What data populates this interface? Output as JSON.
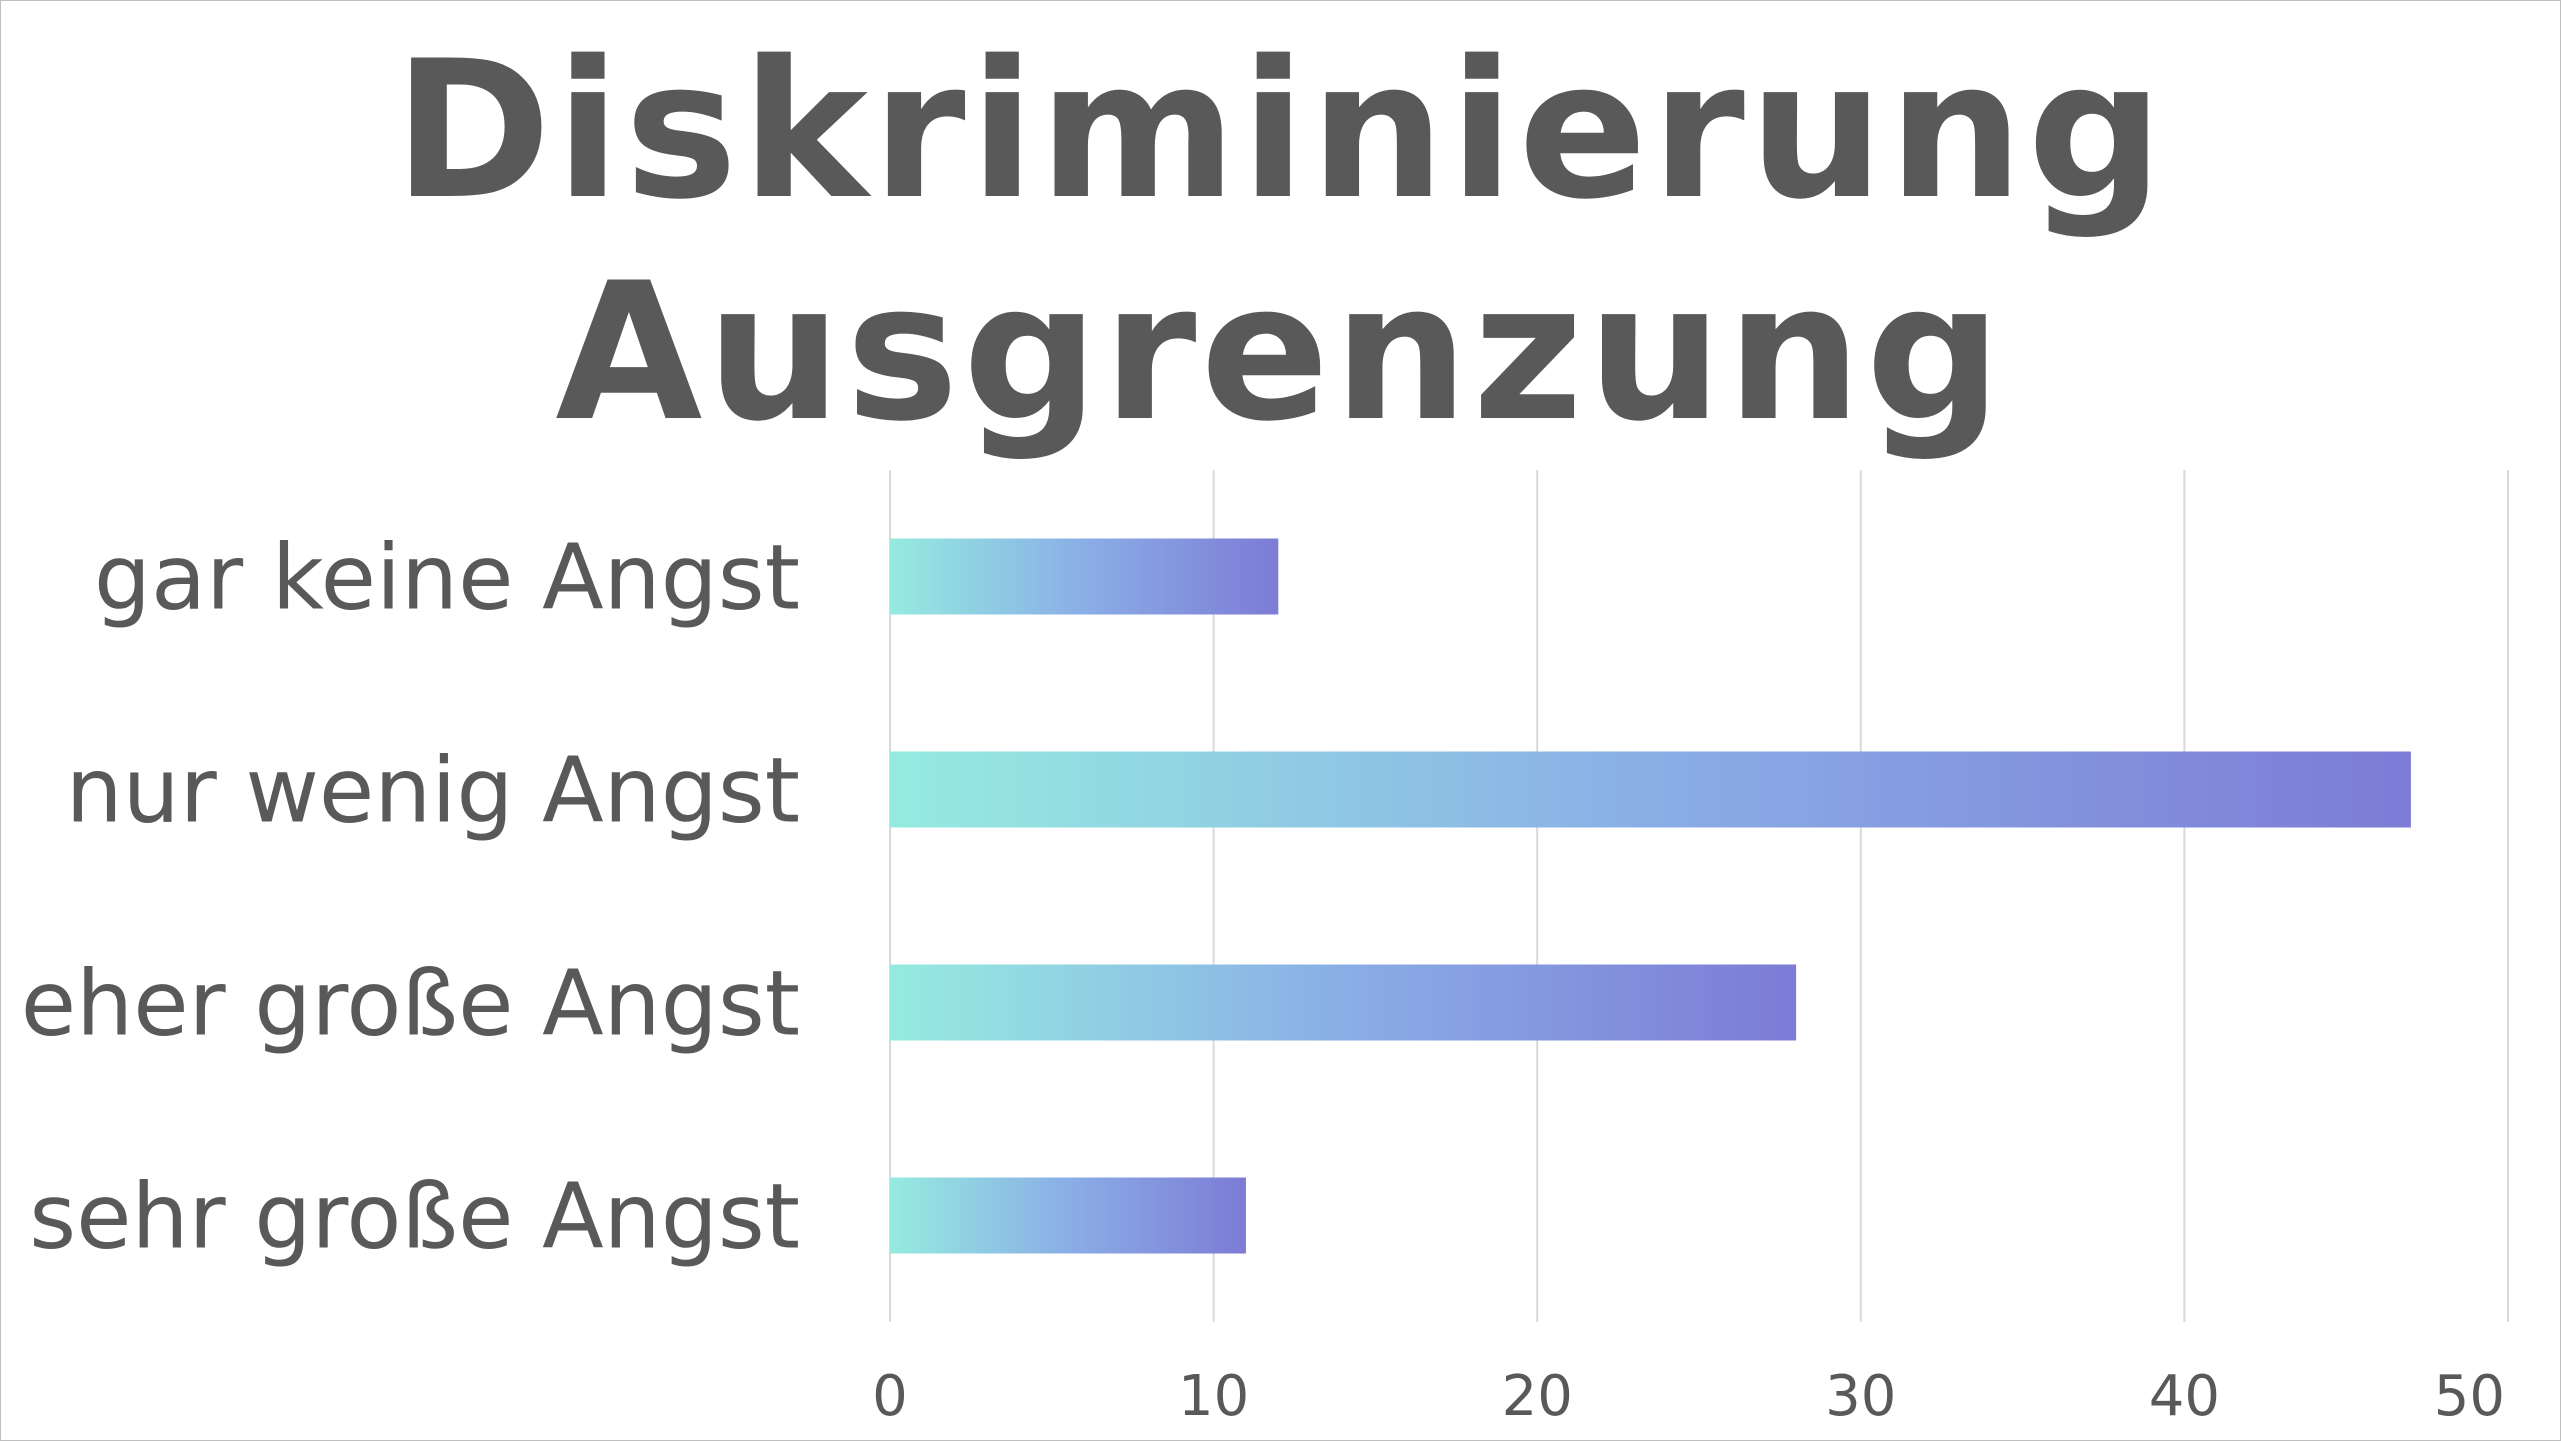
{
  "chart_data": {
    "type": "bar",
    "orientation": "horizontal",
    "title": [
      "Diskriminierung",
      "Ausgrenzung"
    ],
    "categories": [
      "gar keine Angst",
      "nur wenig Angst",
      "eher große Angst",
      "sehr große Angst"
    ],
    "values": [
      12,
      47,
      28,
      11
    ],
    "xlim": [
      0,
      50
    ],
    "xticks": [
      0,
      10,
      20,
      30,
      40,
      50
    ],
    "xlabel": "",
    "ylabel": "",
    "grid": "vertical",
    "legend": "none",
    "colors": {
      "bar_gradient_start": "#95ebe0",
      "bar_gradient_end": "#7d7bd6",
      "text": "#595959",
      "grid": "#d9d9d9"
    }
  }
}
